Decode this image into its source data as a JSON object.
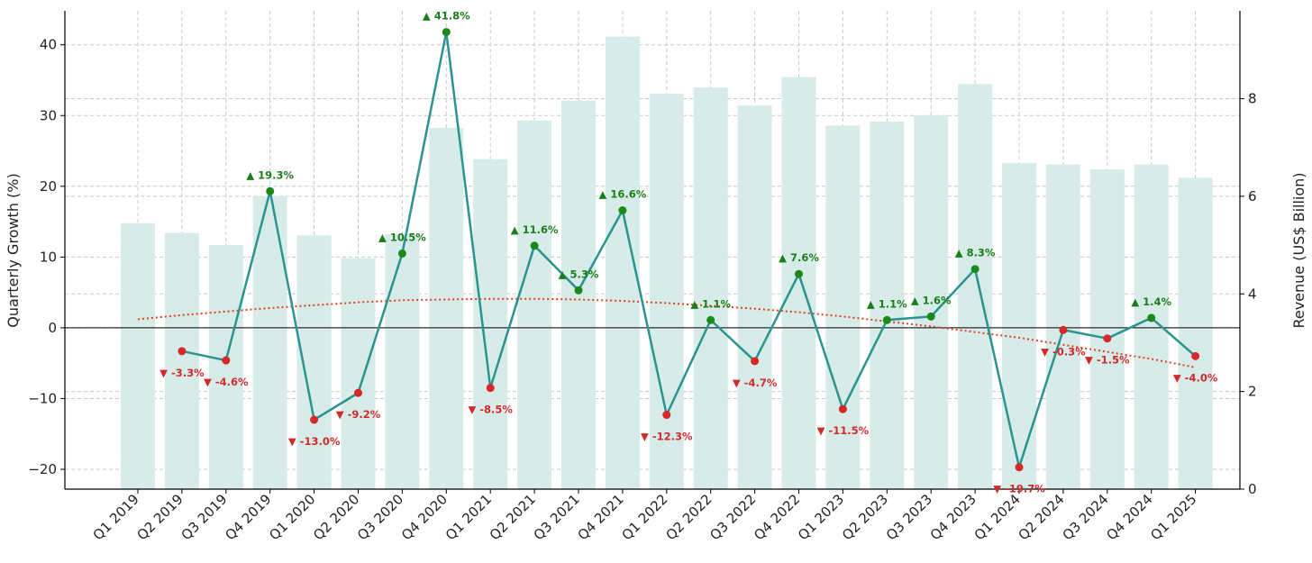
{
  "chart_data": {
    "type": "bar+line",
    "title": "",
    "categories": [
      "Q1 2019",
      "Q2 2019",
      "Q3 2019",
      "Q4 2019",
      "Q1 2020",
      "Q2 2020",
      "Q3 2020",
      "Q4 2020",
      "Q1 2021",
      "Q2 2021",
      "Q3 2021",
      "Q4 2021",
      "Q1 2022",
      "Q2 2022",
      "Q3 2022",
      "Q4 2022",
      "Q1 2023",
      "Q2 2023",
      "Q3 2023",
      "Q4 2023",
      "Q1 2024",
      "Q2 2024",
      "Q3 2024",
      "Q4 2024",
      "Q1 2025"
    ],
    "growth": [
      null,
      -3.3,
      -4.6,
      19.3,
      -13.0,
      -9.2,
      10.5,
      41.8,
      -8.5,
      11.6,
      5.3,
      16.6,
      -12.3,
      1.1,
      -4.7,
      7.6,
      -11.5,
      1.1,
      1.6,
      8.3,
      -19.7,
      -0.3,
      -1.5,
      1.4,
      -4.0
    ],
    "growth_labels": [
      "",
      "▼ -3.3%",
      "▼ -4.6%",
      "▲ 19.3%",
      "▼ -13.0%",
      "▼ -9.2%",
      "▲ 10.5%",
      "▲ 41.8%",
      "▼ -8.5%",
      "▲ 11.6%",
      "▲ 5.3%",
      "▲ 16.6%",
      "▼ -12.3%",
      "▲ 1.1%",
      "▼ -4.7%",
      "▲ 7.6%",
      "▼ -11.5%",
      "▲ 1.1%",
      "▲ 1.6%",
      "▲ 8.3%",
      "▼ -19.7%",
      "▼ -0.3%",
      "▼ -1.5%",
      "▲ 1.4%",
      "▼ -4.0%"
    ],
    "revenue": [
      5.45,
      5.25,
      5.0,
      6.0,
      5.2,
      4.73,
      5.22,
      7.4,
      6.76,
      7.55,
      7.96,
      9.27,
      8.1,
      8.23,
      7.86,
      8.44,
      7.45,
      7.53,
      7.66,
      8.3,
      6.68,
      6.65,
      6.55,
      6.65,
      6.38
    ],
    "trend": [
      1.2,
      1.8,
      2.3,
      2.8,
      3.2,
      3.6,
      3.9,
      4.0,
      4.1,
      4.1,
      4.0,
      3.8,
      3.5,
      3.1,
      2.7,
      2.2,
      1.6,
      0.9,
      0.2,
      -0.6,
      -1.4,
      -2.4,
      -3.4,
      -4.4,
      -5.6
    ],
    "ylabel": "Quarterly Growth (%)",
    "ylabel_right": "Revenue (US$ Billion)",
    "ylim": [
      -22.8,
      44.8
    ],
    "ylim_right": [
      0,
      9.8
    ],
    "yticks": [
      -20,
      -10,
      0,
      10,
      20,
      30,
      40
    ],
    "yticks_right": [
      0,
      2,
      4,
      6,
      8
    ],
    "grid": true,
    "colors": {
      "line": "#2a9490",
      "bar": "#d7ebe9",
      "positive": "#1a7f1a",
      "negative": "#d12a2a",
      "trend": "#e0401a",
      "positive_marker": "#1a8a1a",
      "negative_marker": "#d62828"
    }
  }
}
